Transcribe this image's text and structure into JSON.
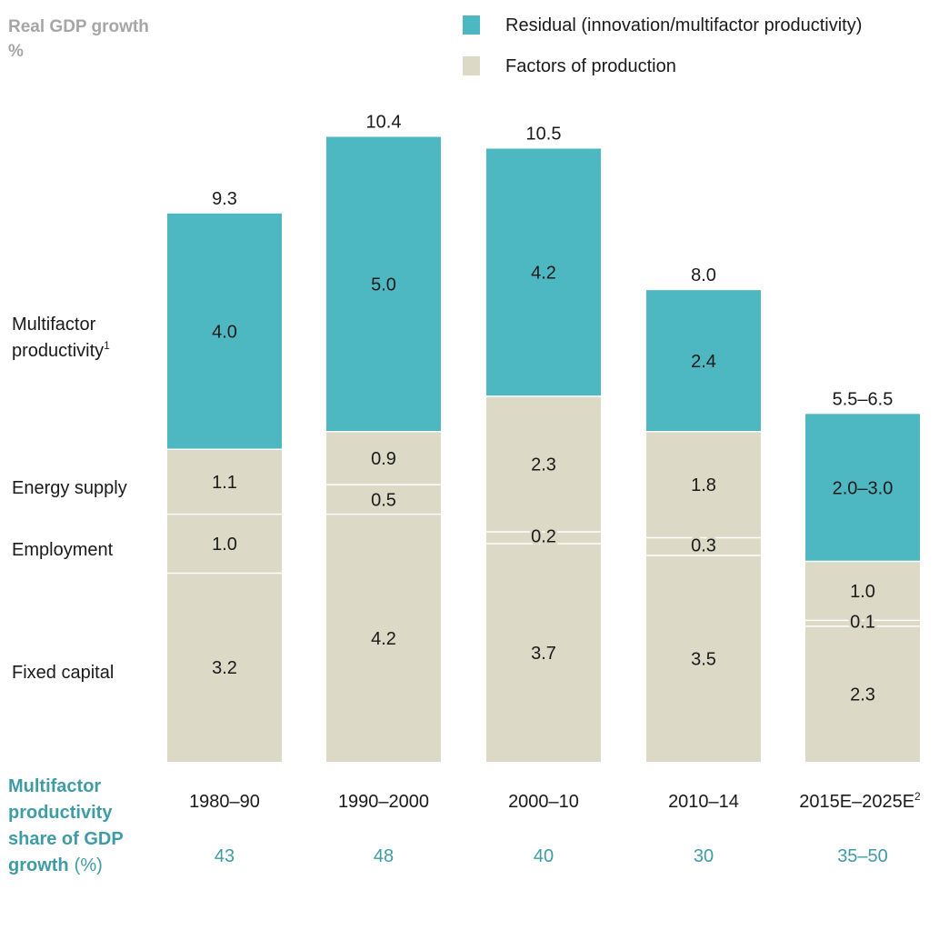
{
  "chart_data": {
    "type": "bar",
    "stacked": true,
    "title": "Real GDP growth",
    "unit": "%",
    "legend": [
      {
        "label": "Residual (innovation/multifactor productivity)",
        "color": "#4db8c1"
      },
      {
        "label": "Factors of production",
        "color": "#dcd9c6"
      }
    ],
    "components": [
      {
        "label": "Fixed capital"
      },
      {
        "label": "Employment"
      },
      {
        "label": "Energy supply"
      },
      {
        "label": "Multifactor productivity",
        "footnote": "1"
      }
    ],
    "categories": [
      {
        "label": "1980–90",
        "footnote": ""
      },
      {
        "label": "1990–2000",
        "footnote": ""
      },
      {
        "label": "2000–10",
        "footnote": ""
      },
      {
        "label": "2010–14",
        "footnote": ""
      },
      {
        "label": "2015E–2025E",
        "footnote": "2"
      }
    ],
    "series": [
      {
        "name": "Fixed capital",
        "values": [
          3.2,
          4.2,
          3.7,
          3.5,
          2.3
        ],
        "labels": [
          "3.2",
          "4.2",
          "3.7",
          "3.5",
          "2.3"
        ]
      },
      {
        "name": "Employment",
        "values": [
          1.0,
          0.5,
          0.2,
          0.3,
          0.1
        ],
        "labels": [
          "1.0",
          "0.5",
          "0.2",
          "0.3",
          "0.1"
        ]
      },
      {
        "name": "Energy supply",
        "values": [
          1.1,
          0.9,
          2.3,
          1.8,
          1.0
        ],
        "labels": [
          "1.1",
          "0.9",
          "2.3",
          "1.8",
          "1.0"
        ]
      },
      {
        "name": "Multifactor productivity",
        "values": [
          4.0,
          5.0,
          4.2,
          2.4,
          2.5
        ],
        "labels": [
          "4.0",
          "5.0",
          "4.2",
          "2.4",
          "2.0–3.0"
        ]
      }
    ],
    "totals": [
      "9.3",
      "10.4",
      "10.5",
      "8.0",
      "5.5–6.5"
    ],
    "share": {
      "label_bold": "Multifactor productivity share of GDP growth",
      "label_unit": "(%)",
      "values": [
        "43",
        "48",
        "40",
        "30",
        "35–50"
      ]
    },
    "ylim": [
      0,
      10.5
    ],
    "colors": {
      "factors": "#dcd9c6",
      "residual": "#4db8c1",
      "share_text": "#3f9ca6",
      "title_text": "#a6a6a6"
    }
  }
}
